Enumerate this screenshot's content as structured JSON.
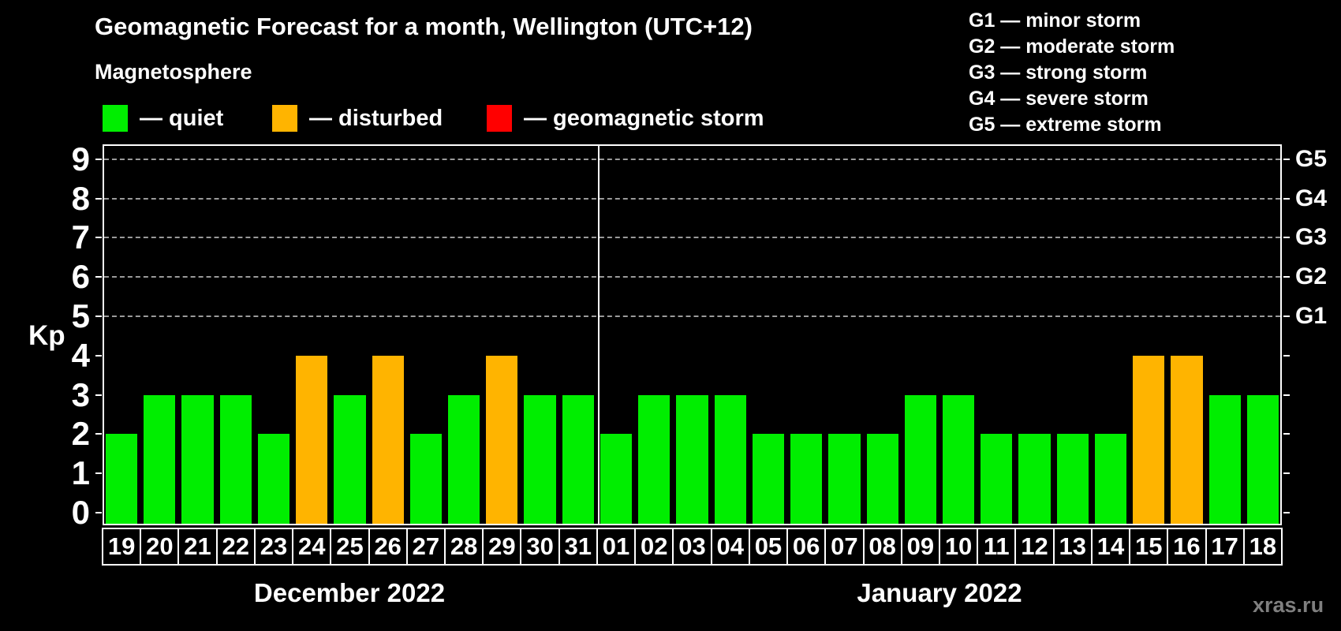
{
  "title": "Geomagnetic Forecast for a month, Wellington (UTC+12)",
  "subtitle": "Magnetosphere",
  "legend": {
    "items": [
      {
        "name": "quiet",
        "label": "— quiet",
        "color": "#00ee00"
      },
      {
        "name": "disturbed",
        "label": "— disturbed",
        "color": "#ffb400"
      },
      {
        "name": "storm",
        "label": "— geomagnetic storm",
        "color": "#ff0000"
      }
    ]
  },
  "storm_scale_legend": [
    "G1 — minor storm",
    "G2 — moderate storm",
    "G3 — strong storm",
    "G4 — severe storm",
    "G5 — extreme storm"
  ],
  "watermark": "xras.ru",
  "chart_data": {
    "type": "bar",
    "ylabel": "Kp",
    "ylim": [
      -0.35,
      9.4
    ],
    "yticks": [
      0,
      1,
      2,
      3,
      4,
      5,
      6,
      7,
      8,
      9
    ],
    "gridlines_at": [
      5,
      6,
      7,
      8,
      9
    ],
    "grid": "dashed horizontal at G-storm levels only",
    "legend_position": "top",
    "right_axis": [
      {
        "kp": 5,
        "label": "G1"
      },
      {
        "kp": 6,
        "label": "G2"
      },
      {
        "kp": 7,
        "label": "G3"
      },
      {
        "kp": 8,
        "label": "G4"
      },
      {
        "kp": 9,
        "label": "G5"
      }
    ],
    "colors": {
      "quiet": "#00ee00",
      "disturbed": "#ffb400",
      "storm": "#ff0000"
    },
    "panels": [
      {
        "month_label": "December 2022",
        "days": [
          "19",
          "20",
          "21",
          "22",
          "23",
          "24",
          "25",
          "26",
          "27",
          "28",
          "29",
          "30",
          "31"
        ],
        "values": [
          2,
          3,
          3,
          3,
          2,
          4,
          3,
          4,
          2,
          3,
          4,
          3,
          3
        ],
        "conditions": [
          "quiet",
          "quiet",
          "quiet",
          "quiet",
          "quiet",
          "disturbed",
          "quiet",
          "disturbed",
          "quiet",
          "quiet",
          "disturbed",
          "quiet",
          "quiet"
        ]
      },
      {
        "month_label": "January 2022",
        "days": [
          "01",
          "02",
          "03",
          "04",
          "05",
          "06",
          "07",
          "08",
          "09",
          "10",
          "11",
          "12",
          "13",
          "14",
          "15",
          "16",
          "17",
          "18"
        ],
        "values": [
          2,
          3,
          3,
          3,
          2,
          2,
          2,
          2,
          3,
          3,
          2,
          2,
          2,
          2,
          4,
          4,
          3,
          3
        ],
        "conditions": [
          "quiet",
          "quiet",
          "quiet",
          "quiet",
          "quiet",
          "quiet",
          "quiet",
          "quiet",
          "quiet",
          "quiet",
          "quiet",
          "quiet",
          "quiet",
          "quiet",
          "disturbed",
          "disturbed",
          "quiet",
          "quiet"
        ]
      }
    ]
  }
}
